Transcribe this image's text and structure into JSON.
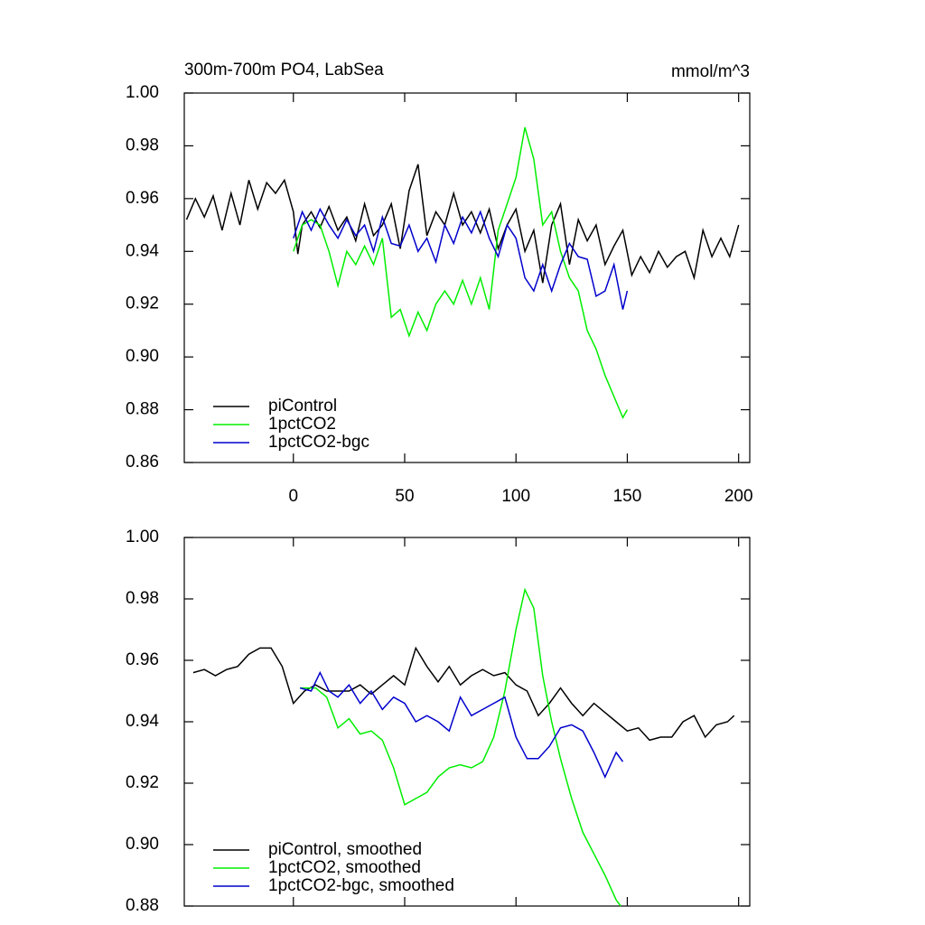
{
  "chart_data": [
    {
      "type": "line",
      "title": "300m-700m PO4, LabSea",
      "subtitle": "mmol/m^3",
      "xlim": [
        -49,
        205
      ],
      "xticks": [
        0,
        50,
        100,
        150,
        200
      ],
      "ylim": [
        0.86,
        1
      ],
      "yticks": [
        0.86,
        0.88,
        {
          "value": 0.9,
          "label": "0.90"
        },
        0.92,
        0.94,
        0.96,
        0.98,
        {
          "value": 1,
          "label": "1.00"
        }
      ],
      "legend": "lower left",
      "series": [
        {
          "name": "piControl",
          "color": "#000000",
          "x": [
            -48,
            -44,
            -40,
            -36,
            -32,
            -28,
            -24,
            -20,
            -16,
            -12,
            -8,
            -4,
            0,
            2,
            4,
            8,
            12,
            16,
            20,
            24,
            28,
            32,
            36,
            40,
            44,
            48,
            52,
            56,
            60,
            64,
            68,
            72,
            76,
            80,
            84,
            88,
            92,
            96,
            100,
            104,
            108,
            112,
            116,
            120,
            124,
            128,
            132,
            136,
            140,
            144,
            148,
            152,
            156,
            160,
            164,
            168,
            172,
            176,
            180,
            184,
            188,
            192,
            196,
            200
          ],
          "values": [
            0.952,
            0.96,
            0.953,
            0.961,
            0.948,
            0.962,
            0.95,
            0.967,
            0.956,
            0.966,
            0.962,
            0.967,
            0.955,
            0.939,
            0.95,
            0.955,
            0.949,
            0.957,
            0.948,
            0.953,
            0.944,
            0.958,
            0.946,
            0.95,
            0.958,
            0.941,
            0.963,
            0.973,
            0.946,
            0.955,
            0.95,
            0.962,
            0.95,
            0.955,
            0.947,
            0.956,
            0.941,
            0.95,
            0.956,
            0.94,
            0.948,
            0.928,
            0.95,
            0.958,
            0.935,
            0.952,
            0.944,
            0.95,
            0.935,
            0.942,
            0.948,
            0.931,
            0.938,
            0.932,
            0.94,
            0.934,
            0.938,
            0.94,
            0.93,
            0.948,
            0.938,
            0.945,
            0.938,
            0.95
          ]
        },
        {
          "name": "1pctCO2",
          "color": "#00ee00",
          "x": [
            0,
            4,
            8,
            12,
            16,
            20,
            24,
            28,
            32,
            36,
            40,
            44,
            48,
            52,
            56,
            60,
            64,
            68,
            72,
            76,
            80,
            84,
            88,
            92,
            96,
            100,
            104,
            108,
            112,
            116,
            120,
            124,
            128,
            132,
            136,
            140,
            144,
            148,
            150
          ],
          "values": [
            0.94,
            0.95,
            0.952,
            0.95,
            0.94,
            0.927,
            0.94,
            0.935,
            0.942,
            0.935,
            0.945,
            0.915,
            0.918,
            0.908,
            0.917,
            0.91,
            0.92,
            0.925,
            0.92,
            0.929,
            0.92,
            0.93,
            0.918,
            0.948,
            0.958,
            0.968,
            0.987,
            0.975,
            0.95,
            0.955,
            0.94,
            0.93,
            0.925,
            0.91,
            0.903,
            0.893,
            0.885,
            0.877,
            0.88
          ]
        },
        {
          "name": "1pctCO2-bgc",
          "color": "#0000cc",
          "x": [
            0,
            4,
            8,
            12,
            16,
            20,
            24,
            28,
            32,
            36,
            40,
            44,
            48,
            52,
            56,
            60,
            64,
            68,
            72,
            76,
            80,
            84,
            88,
            92,
            96,
            100,
            104,
            108,
            112,
            116,
            120,
            124,
            128,
            132,
            136,
            140,
            144,
            148,
            150
          ],
          "values": [
            0.945,
            0.955,
            0.948,
            0.956,
            0.95,
            0.945,
            0.952,
            0.946,
            0.95,
            0.94,
            0.953,
            0.943,
            0.942,
            0.95,
            0.94,
            0.945,
            0.936,
            0.95,
            0.943,
            0.953,
            0.947,
            0.955,
            0.945,
            0.938,
            0.95,
            0.945,
            0.93,
            0.925,
            0.935,
            0.925,
            0.935,
            0.943,
            0.938,
            0.937,
            0.923,
            0.925,
            0.935,
            0.918,
            0.925
          ]
        }
      ]
    },
    {
      "type": "line",
      "xlim": [
        -49,
        205
      ],
      "xticks": [
        0,
        50,
        100,
        150,
        200
      ],
      "ylim": [
        0.88,
        1
      ],
      "yticks": [
        0.88,
        {
          "value": 0.9,
          "label": "0.90"
        },
        0.92,
        0.94,
        0.96,
        0.98,
        {
          "value": 1,
          "label": "1.00"
        }
      ],
      "legend": "lower left",
      "series": [
        {
          "name": "piControl, smoothed",
          "color": "#000000",
          "x": [
            -45,
            -40,
            -35,
            -30,
            -25,
            -20,
            -15,
            -10,
            -5,
            0,
            5,
            10,
            15,
            20,
            25,
            30,
            35,
            40,
            45,
            50,
            55,
            60,
            65,
            70,
            75,
            80,
            85,
            90,
            95,
            100,
            105,
            110,
            115,
            120,
            125,
            130,
            135,
            140,
            145,
            150,
            155,
            160,
            165,
            170,
            175,
            180,
            185,
            190,
            195,
            198
          ],
          "values": [
            0.956,
            0.957,
            0.955,
            0.957,
            0.958,
            0.962,
            0.964,
            0.964,
            0.958,
            0.946,
            0.95,
            0.952,
            0.95,
            0.95,
            0.95,
            0.952,
            0.949,
            0.952,
            0.955,
            0.952,
            0.964,
            0.958,
            0.953,
            0.958,
            0.952,
            0.955,
            0.957,
            0.955,
            0.956,
            0.952,
            0.95,
            0.942,
            0.946,
            0.951,
            0.946,
            0.942,
            0.946,
            0.943,
            0.94,
            0.937,
            0.938,
            0.934,
            0.935,
            0.935,
            0.94,
            0.942,
            0.935,
            0.939,
            0.94,
            0.942
          ]
        },
        {
          "name": "1pctCO2, smoothed",
          "color": "#00ee00",
          "x": [
            3,
            10,
            15,
            20,
            25,
            30,
            35,
            40,
            45,
            50,
            55,
            60,
            65,
            70,
            75,
            80,
            85,
            90,
            95,
            100,
            104,
            108,
            112,
            116,
            120,
            125,
            130,
            135,
            140,
            145,
            147
          ],
          "values": [
            0.951,
            0.951,
            0.948,
            0.938,
            0.941,
            0.936,
            0.937,
            0.934,
            0.925,
            0.913,
            0.915,
            0.917,
            0.922,
            0.925,
            0.926,
            0.925,
            0.927,
            0.935,
            0.95,
            0.97,
            0.983,
            0.977,
            0.955,
            0.94,
            0.928,
            0.915,
            0.904,
            0.897,
            0.89,
            0.882,
            0.88
          ]
        },
        {
          "name": "1pctCO2-bgc, smoothed",
          "color": "#0000cc",
          "x": [
            3,
            8,
            12,
            16,
            20,
            25,
            30,
            35,
            40,
            45,
            50,
            55,
            60,
            65,
            70,
            75,
            80,
            85,
            90,
            95,
            100,
            105,
            110,
            115,
            120,
            125,
            130,
            135,
            140,
            145,
            148
          ],
          "values": [
            0.951,
            0.95,
            0.956,
            0.95,
            0.948,
            0.952,
            0.946,
            0.95,
            0.944,
            0.948,
            0.946,
            0.94,
            0.942,
            0.94,
            0.937,
            0.948,
            0.942,
            0.944,
            0.946,
            0.948,
            0.935,
            0.928,
            0.928,
            0.932,
            0.938,
            0.939,
            0.937,
            0.93,
            0.922,
            0.93,
            0.927
          ]
        }
      ]
    }
  ]
}
